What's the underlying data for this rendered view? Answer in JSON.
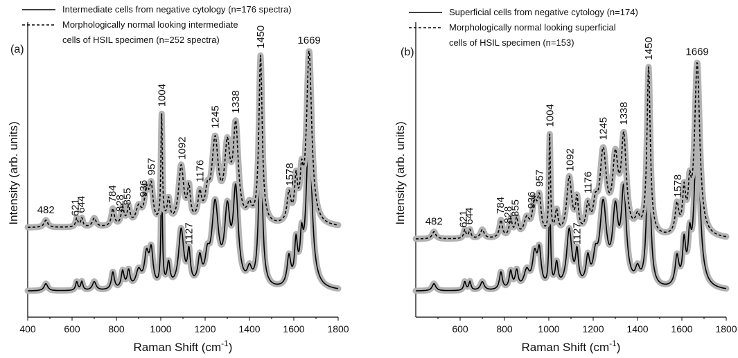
{
  "chart_data": [
    {
      "type": "line",
      "panel_label": "(a)",
      "xlabel": "Raman Shift (cm",
      "xlabel_sup": "-1",
      "xlabel_close": ")",
      "ylabel": "Intensity (arb. units)",
      "xlim": [
        400,
        1800
      ],
      "xticks": [
        400,
        600,
        800,
        1000,
        1200,
        1400,
        1600,
        1800
      ],
      "xtick_labels": [
        "400",
        "600",
        "800",
        "1000",
        "1200",
        "1400",
        "1600",
        "1800"
      ],
      "series": [
        {
          "name": "Intermediate cells from negative cytology (n=176 spectra)",
          "style": "solid",
          "color": "#000000",
          "halo_color": "#b3b3b3",
          "baseline": 0.09,
          "peaks": [
            [
              482,
              0.025,
              10
            ],
            [
              621,
              0.03,
              6
            ],
            [
              644,
              0.03,
              6
            ],
            [
              700,
              0.03,
              10
            ],
            [
              784,
              0.06,
              8
            ],
            [
              828,
              0.06,
              8
            ],
            [
              855,
              0.06,
              8
            ],
            [
              900,
              0.06,
              15
            ],
            [
              936,
              0.11,
              12
            ],
            [
              957,
              0.12,
              10
            ],
            [
              1004,
              0.37,
              4
            ],
            [
              1035,
              0.08,
              8
            ],
            [
              1092,
              0.2,
              14
            ],
            [
              1127,
              0.11,
              8
            ],
            [
              1176,
              0.09,
              10
            ],
            [
              1210,
              0.08,
              12
            ],
            [
              1245,
              0.28,
              18
            ],
            [
              1300,
              0.24,
              15
            ],
            [
              1338,
              0.32,
              14
            ],
            [
              1400,
              0.05,
              12
            ],
            [
              1450,
              0.58,
              9
            ],
            [
              1578,
              0.1,
              10
            ],
            [
              1610,
              0.14,
              8
            ],
            [
              1635,
              0.13,
              8
            ],
            [
              1669,
              0.6,
              14
            ]
          ]
        },
        {
          "name": "Morphologically normal looking intermediate cells of HSIL specimen (n=252 spectra)",
          "style": "dashed",
          "color": "#000000",
          "halo_color": "#b3b3b3",
          "baseline": 0.31,
          "peaks": [
            [
              482,
              0.025,
              10
            ],
            [
              621,
              0.03,
              6
            ],
            [
              644,
              0.03,
              6
            ],
            [
              700,
              0.03,
              10
            ],
            [
              784,
              0.06,
              8
            ],
            [
              828,
              0.06,
              8
            ],
            [
              855,
              0.06,
              8
            ],
            [
              900,
              0.06,
              15
            ],
            [
              936,
              0.11,
              12
            ],
            [
              957,
              0.12,
              10
            ],
            [
              1004,
              0.37,
              4
            ],
            [
              1035,
              0.08,
              8
            ],
            [
              1092,
              0.2,
              14
            ],
            [
              1127,
              0.11,
              8
            ],
            [
              1176,
              0.09,
              10
            ],
            [
              1210,
              0.08,
              12
            ],
            [
              1245,
              0.28,
              18
            ],
            [
              1300,
              0.24,
              15
            ],
            [
              1338,
              0.32,
              14
            ],
            [
              1400,
              0.05,
              12
            ],
            [
              1450,
              0.58,
              9
            ],
            [
              1578,
              0.1,
              10
            ],
            [
              1610,
              0.14,
              8
            ],
            [
              1635,
              0.13,
              8
            ],
            [
              1669,
              0.6,
              14
            ]
          ]
        }
      ],
      "legend_lines": [
        {
          "text": "Intermediate cells from negative cytology (n=176 spectra)",
          "sample": "solid"
        },
        {
          "text": "Morphologically normal looking intermediate",
          "sample": "dashed"
        },
        {
          "text": "cells of HSIL specimen (n=252 spectra)",
          "sample": "none"
        }
      ],
      "peak_labels": [
        {
          "text": "482",
          "x": 482,
          "curve": 1,
          "rotate": false
        },
        {
          "text": "621",
          "x": 614,
          "curve": 1,
          "rotate": true
        },
        {
          "text": "644",
          "x": 640,
          "curve": 1,
          "rotate": true
        },
        {
          "text": "784",
          "x": 782,
          "curve": 1,
          "rotate": true
        },
        {
          "text": "828",
          "x": 816,
          "curve": 1,
          "rotate": true
        },
        {
          "text": "855",
          "x": 848,
          "curve": 1,
          "rotate": true
        },
        {
          "text": "936",
          "x": 922,
          "curve": 1,
          "rotate": true
        },
        {
          "text": "957",
          "x": 958,
          "curve": 1,
          "rotate": true
        },
        {
          "text": "1004",
          "x": 1004,
          "curve": 1,
          "rotate": true
        },
        {
          "text": "1092",
          "x": 1095,
          "curve": 1,
          "rotate": true
        },
        {
          "text": "1127",
          "x": 1127,
          "curve": 0,
          "rotate": true
        },
        {
          "text": "1176",
          "x": 1176,
          "curve": 1,
          "rotate": true
        },
        {
          "text": "1245",
          "x": 1245,
          "curve": 1,
          "rotate": true
        },
        {
          "text": "1338",
          "x": 1338,
          "curve": 1,
          "rotate": true
        },
        {
          "text": "1450",
          "x": 1450,
          "curve": 1,
          "rotate": true
        },
        {
          "text": "1578",
          "x": 1582,
          "curve": 1,
          "rotate": true
        },
        {
          "text": "1669",
          "x": 1669,
          "curve": 1,
          "rotate": false
        }
      ]
    },
    {
      "type": "line",
      "panel_label": "(b)",
      "xlabel": "Raman Shift (cm",
      "xlabel_sup": "-1",
      "xlabel_close": ")",
      "ylabel": "Intensity (arb. units)",
      "xlim": [
        400,
        1800
      ],
      "xticks": [
        600,
        800,
        1000,
        1200,
        1400,
        1600,
        1800
      ],
      "xtick_labels": [
        "600",
        "800",
        "1000",
        "1200",
        "1400",
        "1600",
        "1800"
      ],
      "series": [
        {
          "name": "Superficial cells from negative cytology (n=174)",
          "style": "solid",
          "color": "#000000",
          "halo_color": "#b3b3b3",
          "baseline": 0.09,
          "peaks": [
            [
              482,
              0.025,
              10
            ],
            [
              621,
              0.03,
              6
            ],
            [
              644,
              0.03,
              6
            ],
            [
              700,
              0.03,
              10
            ],
            [
              784,
              0.06,
              8
            ],
            [
              828,
              0.06,
              8
            ],
            [
              855,
              0.06,
              8
            ],
            [
              900,
              0.06,
              15
            ],
            [
              936,
              0.11,
              12
            ],
            [
              957,
              0.12,
              10
            ],
            [
              1004,
              0.34,
              4
            ],
            [
              1035,
              0.08,
              8
            ],
            [
              1092,
              0.2,
              14
            ],
            [
              1127,
              0.11,
              8
            ],
            [
              1176,
              0.09,
              10
            ],
            [
              1210,
              0.08,
              12
            ],
            [
              1245,
              0.28,
              18
            ],
            [
              1300,
              0.24,
              15
            ],
            [
              1338,
              0.32,
              14
            ],
            [
              1400,
              0.05,
              12
            ],
            [
              1450,
              0.58,
              9
            ],
            [
              1578,
              0.1,
              10
            ],
            [
              1610,
              0.14,
              8
            ],
            [
              1635,
              0.13,
              8
            ],
            [
              1669,
              0.6,
              14
            ]
          ]
        },
        {
          "name": "Morphologically normal looking superficial cells of HSIL specimen (n=153)",
          "style": "dashed",
          "color": "#000000",
          "halo_color": "#b3b3b3",
          "baseline": 0.27,
          "peaks": [
            [
              482,
              0.025,
              10
            ],
            [
              621,
              0.03,
              6
            ],
            [
              644,
              0.03,
              6
            ],
            [
              700,
              0.03,
              10
            ],
            [
              784,
              0.06,
              8
            ],
            [
              828,
              0.06,
              8
            ],
            [
              855,
              0.06,
              8
            ],
            [
              900,
              0.06,
              15
            ],
            [
              936,
              0.11,
              12
            ],
            [
              957,
              0.12,
              10
            ],
            [
              1004,
              0.34,
              4
            ],
            [
              1035,
              0.08,
              8
            ],
            [
              1092,
              0.2,
              14
            ],
            [
              1127,
              0.11,
              8
            ],
            [
              1176,
              0.09,
              10
            ],
            [
              1210,
              0.08,
              12
            ],
            [
              1245,
              0.28,
              18
            ],
            [
              1300,
              0.24,
              15
            ],
            [
              1338,
              0.32,
              14
            ],
            [
              1400,
              0.05,
              12
            ],
            [
              1450,
              0.58,
              9
            ],
            [
              1578,
              0.1,
              10
            ],
            [
              1610,
              0.14,
              8
            ],
            [
              1635,
              0.13,
              8
            ],
            [
              1669,
              0.6,
              14
            ]
          ]
        }
      ],
      "legend_lines": [
        {
          "text": "Superficial cells from negative cytology (n=174)",
          "sample": "solid"
        },
        {
          "text": "Morphologically normal looking superficial",
          "sample": "dashed"
        },
        {
          "text": "cells of HSIL specimen (n=153)",
          "sample": "none"
        }
      ],
      "peak_labels": [
        {
          "text": "482",
          "x": 482,
          "curve": 1,
          "rotate": false
        },
        {
          "text": "621",
          "x": 614,
          "curve": 1,
          "rotate": true
        },
        {
          "text": "644",
          "x": 640,
          "curve": 1,
          "rotate": true
        },
        {
          "text": "784",
          "x": 782,
          "curve": 1,
          "rotate": true
        },
        {
          "text": "828",
          "x": 816,
          "curve": 1,
          "rotate": true
        },
        {
          "text": "855",
          "x": 848,
          "curve": 1,
          "rotate": true
        },
        {
          "text": "936",
          "x": 922,
          "curve": 1,
          "rotate": true
        },
        {
          "text": "957",
          "x": 958,
          "curve": 1,
          "rotate": true
        },
        {
          "text": "1004",
          "x": 1004,
          "curve": 1,
          "rotate": true
        },
        {
          "text": "1092",
          "x": 1095,
          "curve": 1,
          "rotate": true
        },
        {
          "text": "1127",
          "x": 1127,
          "curve": 0,
          "rotate": true
        },
        {
          "text": "1176",
          "x": 1176,
          "curve": 1,
          "rotate": true
        },
        {
          "text": "1245",
          "x": 1245,
          "curve": 1,
          "rotate": true
        },
        {
          "text": "1338",
          "x": 1338,
          "curve": 1,
          "rotate": true
        },
        {
          "text": "1450",
          "x": 1450,
          "curve": 1,
          "rotate": true
        },
        {
          "text": "1578",
          "x": 1582,
          "curve": 1,
          "rotate": true
        },
        {
          "text": "1669",
          "x": 1669,
          "curve": 1,
          "rotate": false
        }
      ]
    }
  ]
}
